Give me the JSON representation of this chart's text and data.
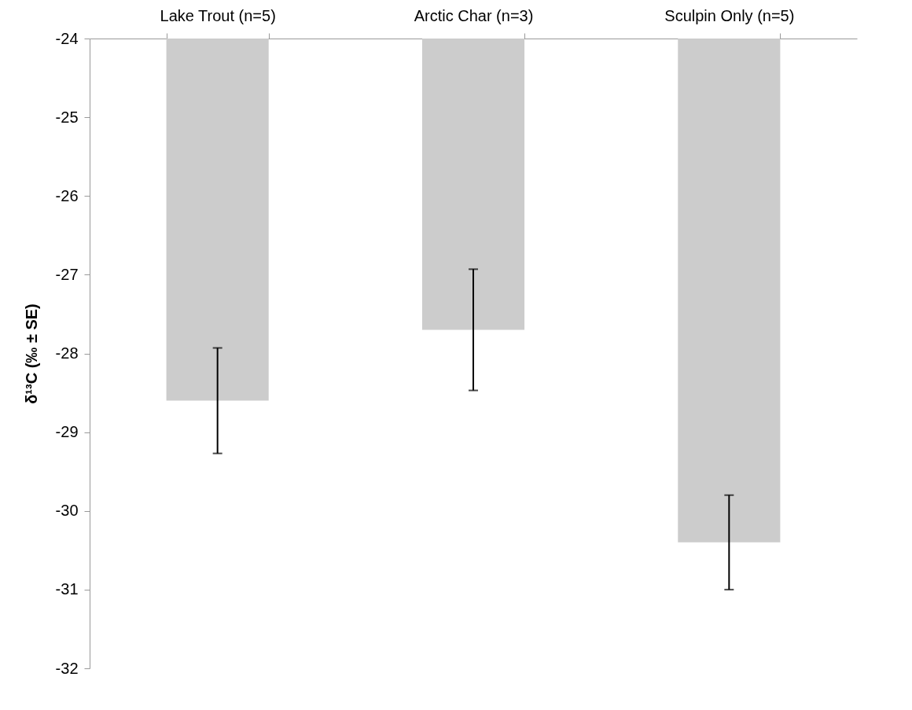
{
  "chart_data": {
    "type": "bar",
    "categories": [
      "Lake Trout (n=5)",
      "Arctic Char (n=3)",
      "Sculpin Only (n=5)"
    ],
    "values": [
      -28.6,
      -27.7,
      -30.4
    ],
    "errors": [
      0.67,
      0.77,
      0.6
    ],
    "color": "#cccccc",
    "ylabel": "δ¹³C (‰ ± SE)",
    "ylim": [
      -32,
      -24
    ],
    "yticks": [
      -32,
      -31,
      -30,
      -29,
      -28,
      -27,
      -26,
      -25,
      -24
    ],
    "grid": false
  }
}
